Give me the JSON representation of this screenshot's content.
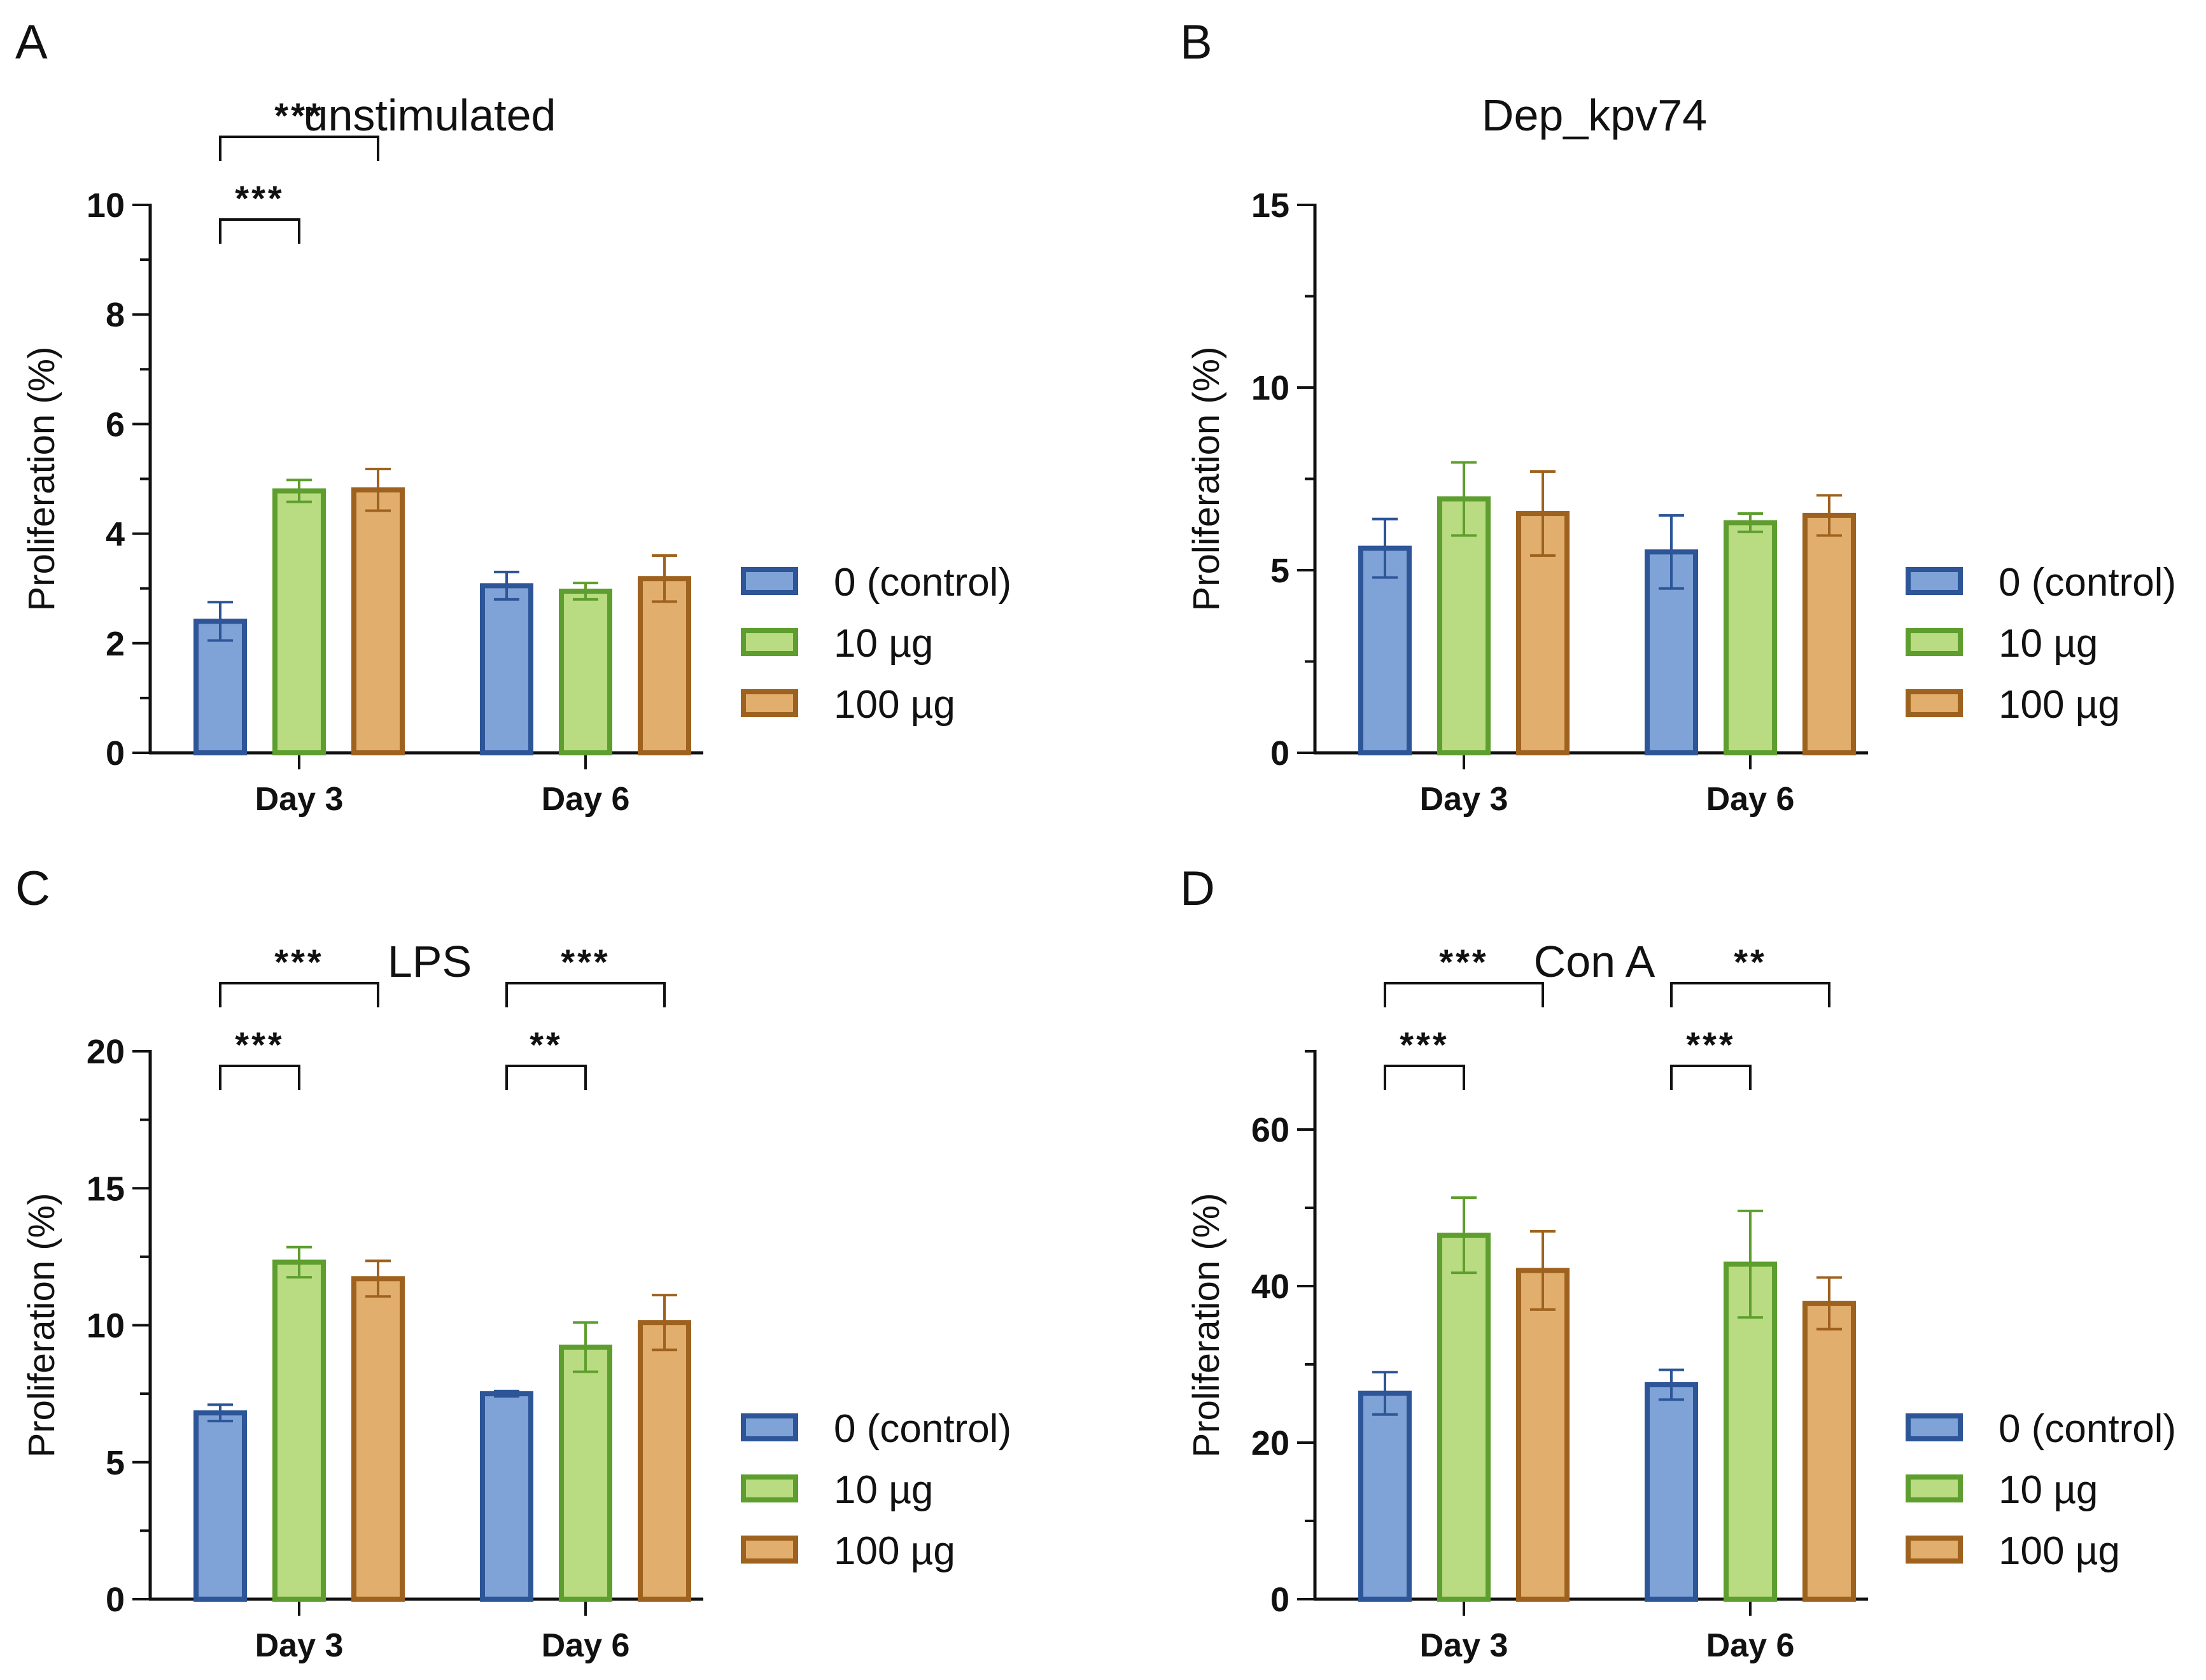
{
  "figure": {
    "colors": {
      "control": {
        "fill": "#7FA3D6",
        "stroke": "#2D5597"
      },
      "ten": {
        "fill": "#B9DC82",
        "stroke": "#5E9E2E"
      },
      "hundred": {
        "fill": "#E2AE6E",
        "stroke": "#9E621F"
      }
    },
    "legend": [
      "0 (control)",
      "10 µg",
      "100 µg"
    ]
  },
  "chart_data": [
    {
      "panel": "A",
      "type": "bar",
      "title": "unstimulated",
      "ylabel": "Proliferation (%)",
      "xlabel": "",
      "categories": [
        "Day 3",
        "Day 6"
      ],
      "ylim": [
        0,
        10
      ],
      "yticks": [
        "0",
        "2",
        "4",
        "6",
        "8",
        "10"
      ],
      "series": [
        {
          "name": "0 (control)",
          "values": [
            2.4,
            3.05
          ],
          "errors": [
            0.35,
            0.25
          ]
        },
        {
          "name": "10 µg",
          "values": [
            4.78,
            2.95
          ],
          "errors": [
            0.2,
            0.15
          ]
        },
        {
          "name": "100 µg",
          "values": [
            4.8,
            3.18
          ],
          "errors": [
            0.38,
            0.42
          ]
        }
      ],
      "significance": [
        {
          "group": 0,
          "from": 0,
          "to": 1,
          "label": "***",
          "level": 1
        },
        {
          "group": 0,
          "from": 0,
          "to": 2,
          "label": "***",
          "level": 2
        }
      ],
      "legend_position": "right"
    },
    {
      "panel": "B",
      "type": "bar",
      "title": "Dep_kpv74",
      "ylabel": "Proliferation (%)",
      "xlabel": "",
      "categories": [
        "Day 3",
        "Day 6"
      ],
      "ylim": [
        0,
        15
      ],
      "yticks": [
        "0",
        "5",
        "10",
        "15"
      ],
      "series": [
        {
          "name": "0 (control)",
          "values": [
            5.6,
            5.5
          ],
          "errors": [
            0.8,
            1.0
          ]
        },
        {
          "name": "10 µg",
          "values": [
            6.95,
            6.3
          ],
          "errors": [
            1.0,
            0.25
          ]
        },
        {
          "name": "100 µg",
          "values": [
            6.55,
            6.5
          ],
          "errors": [
            1.15,
            0.55
          ]
        }
      ],
      "significance": [],
      "legend_position": "right"
    },
    {
      "panel": "C",
      "type": "bar",
      "title": "LPS",
      "ylabel": "Proliferation (%)",
      "xlabel": "",
      "categories": [
        "Day 3",
        "Day 6"
      ],
      "ylim": [
        0,
        20
      ],
      "yticks": [
        "0",
        "5",
        "10",
        "15",
        "20"
      ],
      "series": [
        {
          "name": "0 (control)",
          "values": [
            6.8,
            7.5
          ],
          "errors": [
            0.3,
            0.1
          ]
        },
        {
          "name": "10 µg",
          "values": [
            12.3,
            9.2
          ],
          "errors": [
            0.55,
            0.9
          ]
        },
        {
          "name": "100 µg",
          "values": [
            11.7,
            10.1
          ],
          "errors": [
            0.65,
            1.0
          ]
        }
      ],
      "significance": [
        {
          "group": 0,
          "from": 0,
          "to": 1,
          "label": "***",
          "level": 1
        },
        {
          "group": 0,
          "from": 0,
          "to": 2,
          "label": "***",
          "level": 2
        },
        {
          "group": 1,
          "from": 0,
          "to": 1,
          "label": "**",
          "level": 1
        },
        {
          "group": 1,
          "from": 0,
          "to": 2,
          "label": "***",
          "level": 2
        }
      ],
      "legend_position": "right"
    },
    {
      "panel": "D",
      "type": "bar",
      "title": "Con A",
      "ylabel": "Proliferation (%)",
      "xlabel": "",
      "categories": [
        "Day 3",
        "Day 6"
      ],
      "ylim": [
        0,
        70
      ],
      "yticks": [
        "0",
        "20",
        "40",
        "60"
      ],
      "series": [
        {
          "name": "0 (control)",
          "values": [
            26.3,
            27.4
          ],
          "errors": [
            2.7,
            1.9
          ]
        },
        {
          "name": "10 µg",
          "values": [
            46.5,
            42.8
          ],
          "errors": [
            4.8,
            6.8
          ]
        },
        {
          "name": "100 µg",
          "values": [
            42.0,
            37.8
          ],
          "errors": [
            5.0,
            3.3
          ]
        }
      ],
      "significance": [
        {
          "group": 0,
          "from": 0,
          "to": 1,
          "label": "***",
          "level": 1
        },
        {
          "group": 0,
          "from": 0,
          "to": 2,
          "label": "***",
          "level": 2
        },
        {
          "group": 1,
          "from": 0,
          "to": 1,
          "label": "***",
          "level": 1
        },
        {
          "group": 1,
          "from": 0,
          "to": 2,
          "label": "**",
          "level": 2
        }
      ],
      "legend_position": "right"
    }
  ]
}
